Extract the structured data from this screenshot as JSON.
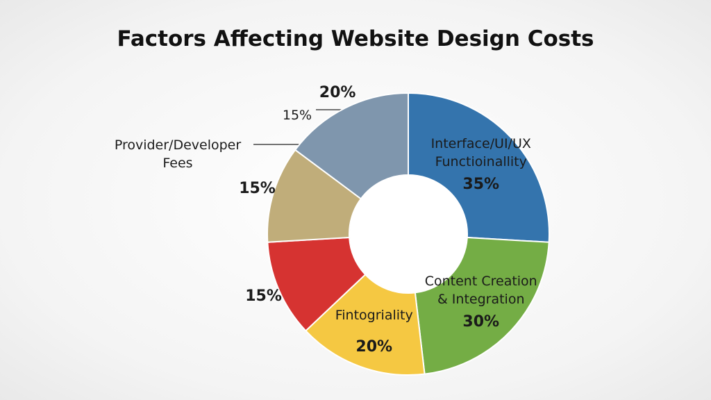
{
  "chart_data": {
    "type": "pie",
    "title": "Factors Affecting Website Design Costs",
    "categories": [
      "Interface/UI/UX\nFunctioinallity",
      "Content Creation\n& Integration",
      "Fintogriality",
      null,
      null,
      null
    ],
    "values": [
      35,
      30,
      20,
      15,
      15,
      20
    ],
    "value_labels": [
      "35%",
      "30%",
      "20%",
      "15%",
      "15%",
      "20%"
    ],
    "colors": [
      "#3474ad",
      "#74ad45",
      "#f5c842",
      "#d63331",
      "#c0ad7a",
      "#7f96ad"
    ],
    "annotations": [
      "Provider/Developer\nFees",
      "15%"
    ]
  }
}
